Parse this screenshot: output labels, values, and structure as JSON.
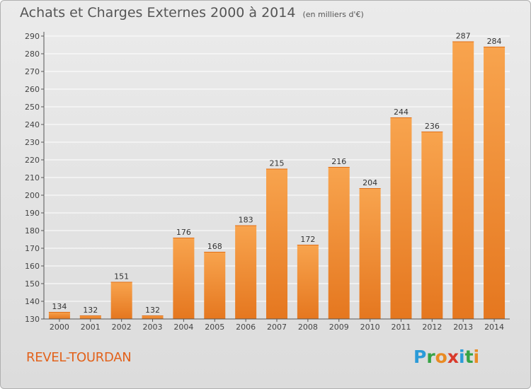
{
  "title": {
    "main": "Achats et Charges Externes 2000 à 2014",
    "unit": "(en milliers d'€)"
  },
  "commune": "REVEL-TOURDAN",
  "logo": {
    "letters": [
      "P",
      "r",
      "o",
      "x",
      "i",
      "t",
      "i"
    ],
    "colors": [
      "#2b9bd8",
      "#36a345",
      "#e98b23",
      "#d93a2b",
      "#2b9bd8",
      "#36a345",
      "#e98b23"
    ]
  },
  "colors": {
    "bar_light": "#f8a44e",
    "bar_dark": "#e5771f",
    "axis": "#555555",
    "grid": "#ffffff"
  },
  "chart_data": {
    "type": "bar",
    "title": "Achats et Charges Externes 2000 à 2014",
    "subtitle": "(en milliers d'€)",
    "categories": [
      "2000",
      "2001",
      "2002",
      "2003",
      "2004",
      "2005",
      "2006",
      "2007",
      "2008",
      "2009",
      "2010",
      "2011",
      "2012",
      "2013",
      "2014"
    ],
    "values": [
      134,
      132,
      151,
      132,
      176,
      168,
      183,
      215,
      172,
      216,
      204,
      244,
      236,
      287,
      284
    ],
    "ylim": [
      130,
      290
    ],
    "yticks": [
      130,
      140,
      150,
      160,
      170,
      180,
      190,
      200,
      210,
      220,
      230,
      240,
      250,
      260,
      270,
      280,
      290
    ],
    "grid": true,
    "xlabel": "",
    "ylabel": ""
  }
}
